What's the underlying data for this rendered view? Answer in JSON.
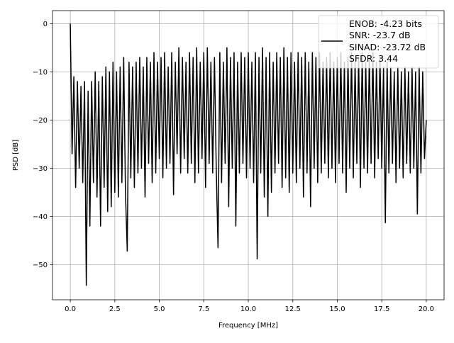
{
  "chart_data": {
    "type": "line",
    "title": "",
    "xlabel": "Frequency [MHz]",
    "ylabel": "PSD [dB]",
    "xlim": [
      -1.0,
      21.0
    ],
    "ylim": [
      -57.3,
      2.7
    ],
    "xticks": [
      0.0,
      2.5,
      5.0,
      7.5,
      10.0,
      12.5,
      15.0,
      17.5,
      20.0
    ],
    "xtick_labels": [
      "0.0",
      "2.5",
      "5.0",
      "7.5",
      "10.0",
      "12.5",
      "15.0",
      "17.5",
      "20.0"
    ],
    "yticks": [
      0,
      -10,
      -20,
      -30,
      -40,
      -50
    ],
    "ytick_labels": [
      "0",
      "−10",
      "−20",
      "−30",
      "−40",
      "−50"
    ],
    "grid": true,
    "legend_placement": "upper-right",
    "legend_lines": [
      "ENOB: -4.23 bits",
      "SNR: -23.7 dB",
      "SINAD: -23.72 dB",
      "SFDR: 3.44"
    ],
    "line_color": "#000000",
    "grid_color": "#b0b0b0",
    "series": [
      {
        "x": [
          0.0,
          0.1,
          0.2,
          0.3,
          0.4,
          0.5,
          0.6,
          0.7,
          0.8,
          0.9,
          1.0,
          1.1,
          1.2,
          1.3,
          1.4,
          1.5,
          1.6,
          1.7,
          1.8,
          1.9,
          2.0,
          2.1,
          2.2,
          2.3,
          2.4,
          2.5,
          2.6,
          2.7,
          2.8,
          2.9,
          3.0,
          3.1,
          3.2,
          3.3,
          3.4,
          3.5,
          3.6,
          3.7,
          3.8,
          3.9,
          4.0,
          4.1,
          4.2,
          4.3,
          4.4,
          4.5,
          4.6,
          4.7,
          4.8,
          4.9,
          5.0,
          5.1,
          5.2,
          5.3,
          5.4,
          5.5,
          5.6,
          5.7,
          5.8,
          5.9,
          6.0,
          6.1,
          6.2,
          6.3,
          6.4,
          6.5,
          6.6,
          6.7,
          6.8,
          6.9,
          7.0,
          7.1,
          7.2,
          7.3,
          7.4,
          7.5,
          7.6,
          7.7,
          7.8,
          7.9,
          8.0,
          8.1,
          8.2,
          8.3,
          8.4,
          8.5,
          8.6,
          8.7,
          8.8,
          8.9,
          9.0,
          9.1,
          9.2,
          9.3,
          9.4,
          9.5,
          9.6,
          9.7,
          9.8,
          9.9,
          10.0,
          10.1,
          10.2,
          10.3,
          10.4,
          10.5,
          10.6,
          10.7,
          10.8,
          10.9,
          11.0,
          11.1,
          11.2,
          11.3,
          11.4,
          11.5,
          11.6,
          11.7,
          11.8,
          11.9,
          12.0,
          12.1,
          12.2,
          12.3,
          12.4,
          12.5,
          12.6,
          12.7,
          12.8,
          12.9,
          13.0,
          13.1,
          13.2,
          13.3,
          13.4,
          13.5,
          13.6,
          13.7,
          13.8,
          13.9,
          14.0,
          14.1,
          14.2,
          14.3,
          14.4,
          14.5,
          14.6,
          14.7,
          14.8,
          14.9,
          15.0,
          15.1,
          15.2,
          15.3,
          15.4,
          15.5,
          15.6,
          15.7,
          15.8,
          15.9,
          16.0,
          16.1,
          16.2,
          16.3,
          16.4,
          16.5,
          16.6,
          16.7,
          16.8,
          16.9,
          17.0,
          17.1,
          17.2,
          17.3,
          17.4,
          17.5,
          17.6,
          17.7,
          17.8,
          17.9,
          18.0,
          18.1,
          18.2,
          18.3,
          18.4,
          18.5,
          18.6,
          18.7,
          18.8,
          18.9,
          19.0,
          19.1,
          19.2,
          19.3,
          19.4,
          19.5,
          19.6,
          19.7,
          19.8,
          19.9,
          20.0
        ],
        "y": [
          0,
          -27,
          -11,
          -34,
          -12,
          -30,
          -13,
          -33,
          -12,
          -54.3,
          -14,
          -42,
          -12,
          -33,
          -10,
          -36,
          -12,
          -42,
          -11,
          -34,
          -9,
          -39,
          -10,
          -38,
          -8,
          -35,
          -10,
          -36,
          -9,
          -33,
          -7,
          -35,
          -47.2,
          -8,
          -32,
          -9,
          -34,
          -8,
          -31,
          -7,
          -30,
          -9,
          -36,
          -7,
          -29,
          -8,
          -33,
          -6,
          -31,
          -8,
          -28,
          -7,
          -32,
          -6,
          -30,
          -9,
          -29,
          -6,
          -35.5,
          -8,
          -27,
          -5,
          -31,
          -7,
          -28,
          -8,
          -31,
          -6,
          -29,
          -7,
          -33,
          -5,
          -31,
          -8,
          -28,
          -6,
          -34,
          -5,
          -29,
          -8,
          -31,
          -7,
          -30,
          -46.5,
          -6,
          -33,
          -8,
          -29,
          -5,
          -38,
          -7,
          -30,
          -6,
          -42,
          -8,
          -31,
          -6,
          -29,
          -7,
          -32,
          -6,
          -30,
          -8,
          -33,
          -6,
          -48.8,
          -7,
          -31,
          -5,
          -36,
          -7,
          -40,
          -6,
          -35,
          -8,
          -31,
          -6,
          -29,
          -7,
          -34,
          -5,
          -32,
          -7,
          -35,
          -6,
          -31,
          -8,
          -33,
          -6,
          -30,
          -7,
          -36,
          -6,
          -31,
          -8,
          -38,
          -6,
          -30,
          -7,
          -33,
          -6,
          -31,
          -8,
          -29,
          -7,
          -32,
          -6,
          -30,
          -8,
          -33,
          -7,
          -29,
          -6,
          -31,
          -8,
          -35,
          -7,
          -30,
          -6,
          -32,
          -8,
          -29,
          -7,
          -34,
          -6,
          -30,
          -8,
          -31,
          -7,
          -29,
          -6,
          -32,
          -8,
          -28,
          -7,
          -30,
          -9,
          -41.3,
          -8,
          -31,
          -9,
          -29,
          -10,
          -33,
          -9,
          -30,
          -10,
          -32,
          -9,
          -29,
          -10,
          -31,
          -9,
          -30,
          -10,
          -39.5,
          -9,
          -31,
          -10,
          -28,
          -20
        ]
      }
    ]
  }
}
